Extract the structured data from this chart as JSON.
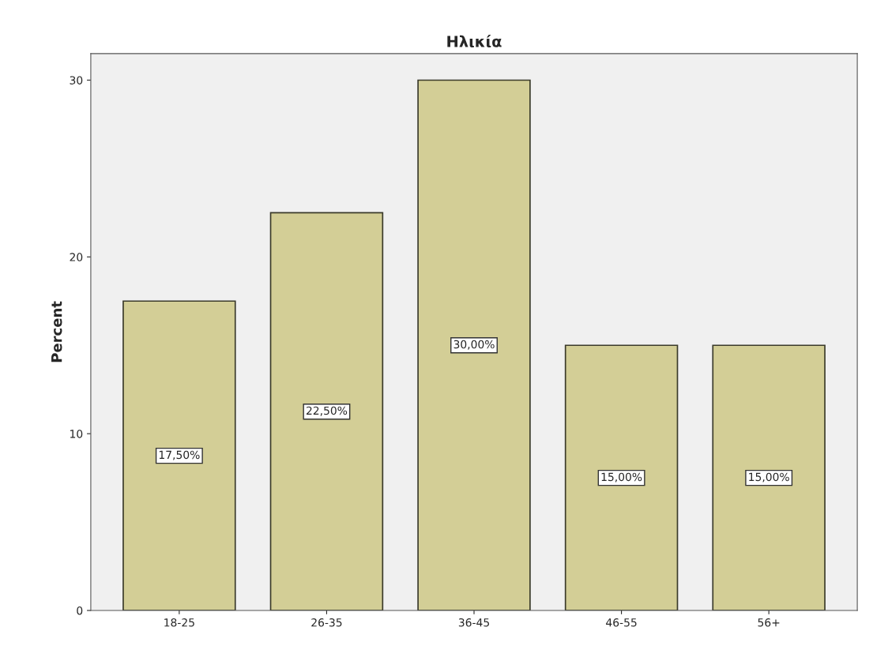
{
  "chart_data": {
    "type": "bar",
    "title": "Ηλικία",
    "ylabel": "Percent",
    "categories": [
      "18-25",
      "26-35",
      "36-45",
      "46-55",
      "56+"
    ],
    "values": [
      17.5,
      22.5,
      30,
      15,
      15
    ],
    "value_labels": [
      "17,50%",
      "22,50%",
      "30,00%",
      "15,00%",
      "15,00%"
    ],
    "color": "#d3ce96",
    "ylim": [
      0,
      31.5
    ],
    "yticks": [
      0,
      10,
      20,
      30
    ],
    "grid": false
  }
}
